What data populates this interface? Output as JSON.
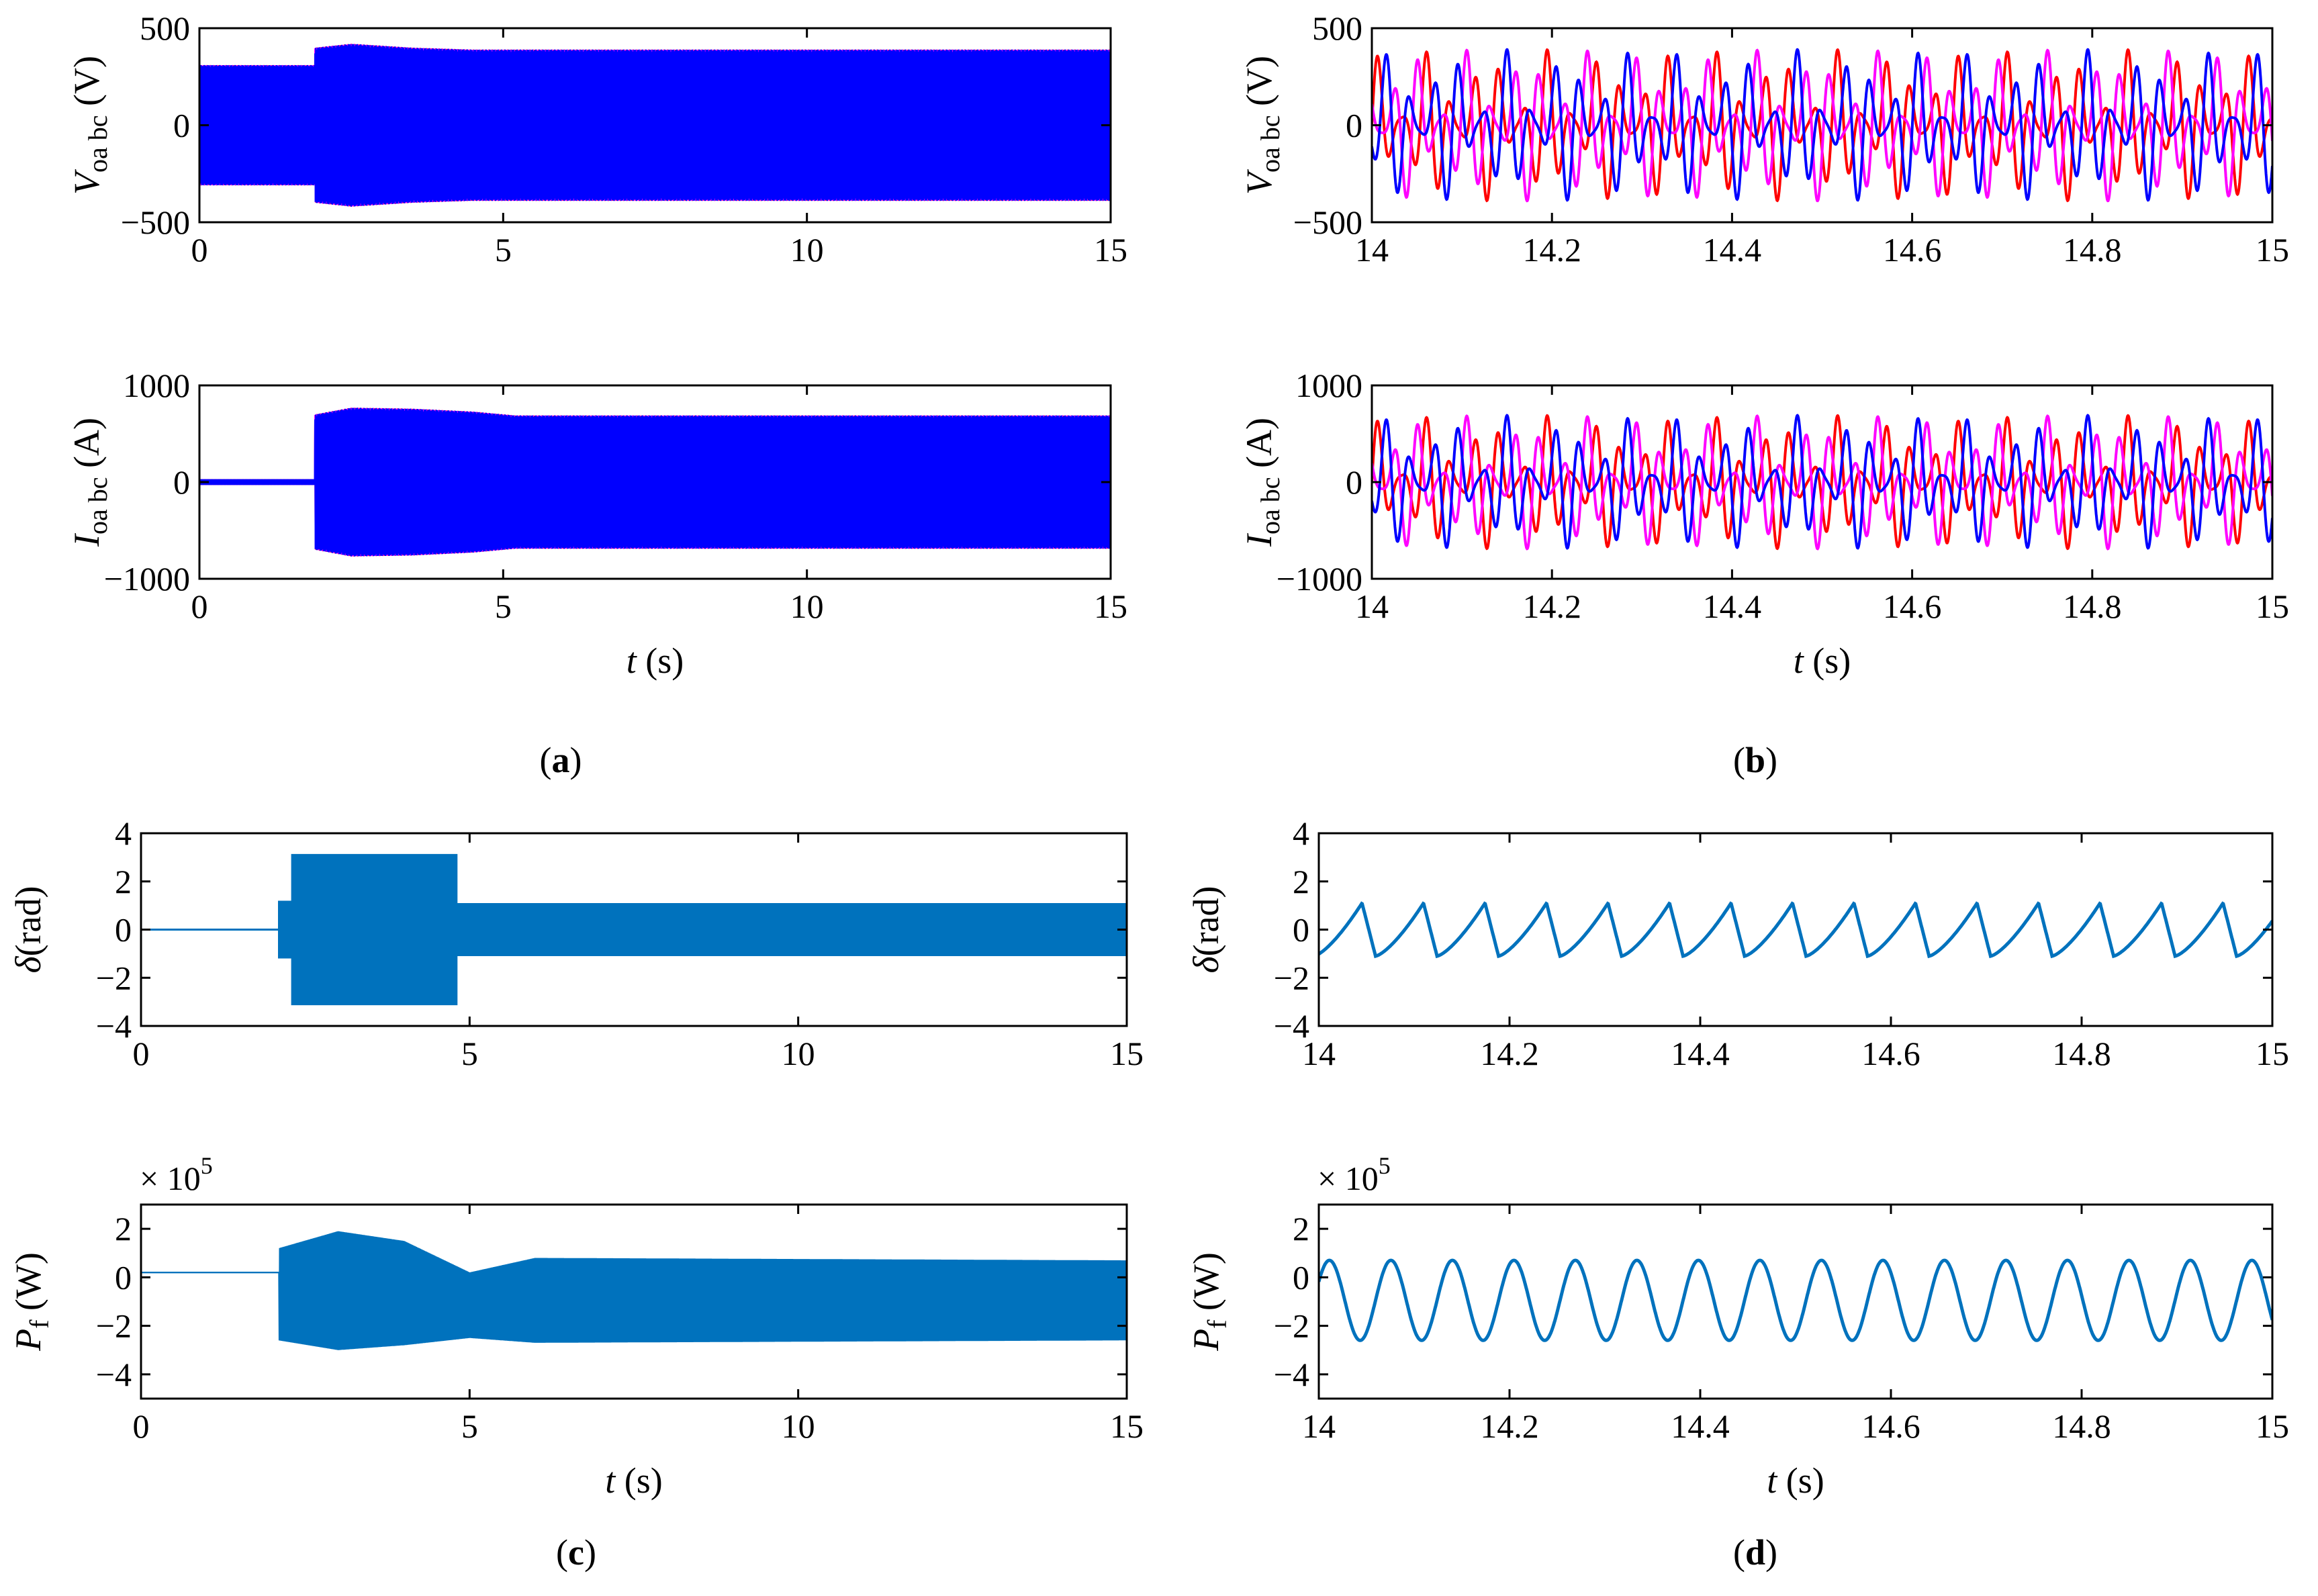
{
  "colors": {
    "phase_a": "#ff0000",
    "phase_b": "#ff00ff",
    "phase_c": "#0000ff",
    "single": "#0072bd"
  },
  "panels": {
    "a": {
      "label": "a"
    },
    "b": {
      "label": "b"
    },
    "c": {
      "label": "c"
    },
    "d": {
      "label": "d"
    }
  },
  "x_axis_label": {
    "var": "t",
    "unit": "(s)"
  },
  "chart_data": [
    {
      "panel": "a",
      "type": "line",
      "ylabel": {
        "sym": "V",
        "sub": "oa bc",
        "unit": "(V)"
      },
      "xlim": [
        0,
        15
      ],
      "ylim": [
        -500,
        500
      ],
      "xticks": [
        "0",
        "5",
        "10",
        "15"
      ],
      "yticks": [
        "500",
        "0",
        "−500"
      ],
      "series": [
        {
          "color": "phase_a",
          "phase_deg": 0
        },
        {
          "color": "phase_b",
          "phase_deg": 120
        },
        {
          "color": "phase_c",
          "phase_deg": 240
        }
      ],
      "envelope": [
        [
          0,
          310
        ],
        [
          1.9,
          310
        ],
        [
          1.9,
          400
        ],
        [
          2.5,
          420
        ],
        [
          3.5,
          400
        ],
        [
          4.5,
          390
        ],
        [
          5.2,
          390
        ],
        [
          15,
          390
        ]
      ]
    },
    {
      "panel": "a",
      "type": "line",
      "ylabel": {
        "sym": "I",
        "sub": "oa bc",
        "unit": "(A)"
      },
      "xlim": [
        0,
        15
      ],
      "ylim": [
        -1000,
        1000
      ],
      "xticks": [
        "0",
        "5",
        "10",
        "15"
      ],
      "yticks": [
        "1000",
        "0",
        "−1000"
      ],
      "series": [
        {
          "color": "phase_a",
          "phase_deg": 0
        },
        {
          "color": "phase_b",
          "phase_deg": 120
        },
        {
          "color": "phase_c",
          "phase_deg": 240
        }
      ],
      "envelope": [
        [
          0,
          30
        ],
        [
          1.9,
          30
        ],
        [
          1.9,
          700
        ],
        [
          2.5,
          770
        ],
        [
          3.5,
          760
        ],
        [
          4.5,
          730
        ],
        [
          5.2,
          690
        ],
        [
          15,
          690
        ]
      ]
    },
    {
      "panel": "b",
      "type": "line",
      "ylabel": {
        "sym": "V",
        "sub": "oa bc",
        "unit": "(V)"
      },
      "xlim": [
        14,
        15
      ],
      "ylim": [
        -500,
        500
      ],
      "xticks": [
        "14",
        "14.2",
        "14.4",
        "14.6",
        "14.8",
        "15"
      ],
      "yticks": [
        "500",
        "0",
        "−500"
      ],
      "carrier_hz": 50,
      "beat_period_s": 0.0645,
      "amplitude": 390,
      "series": [
        {
          "color": "phase_a",
          "phase_deg": 0
        },
        {
          "color": "phase_b",
          "phase_deg": 120
        },
        {
          "color": "phase_c",
          "phase_deg": 240
        }
      ]
    },
    {
      "panel": "b",
      "type": "line",
      "ylabel": {
        "sym": "I",
        "sub": "oa bc",
        "unit": "(A)"
      },
      "xlim": [
        14,
        15
      ],
      "ylim": [
        -1000,
        1000
      ],
      "xticks": [
        "14",
        "14.2",
        "14.4",
        "14.6",
        "14.8",
        "15"
      ],
      "yticks": [
        "1000",
        "0",
        "−1000"
      ],
      "carrier_hz": 50,
      "beat_period_s": 0.0645,
      "amplitude": 690,
      "series": [
        {
          "color": "phase_a",
          "phase_deg": 0
        },
        {
          "color": "phase_b",
          "phase_deg": 120
        },
        {
          "color": "phase_c",
          "phase_deg": 240
        }
      ]
    },
    {
      "panel": "c",
      "type": "line",
      "ylabel": {
        "sym": "δ",
        "unit": "(rad)"
      },
      "xlim": [
        0,
        15
      ],
      "ylim": [
        -4,
        4
      ],
      "xticks": [
        "0",
        "5",
        "10",
        "15"
      ],
      "yticks": [
        "4",
        "2",
        "0",
        "−2",
        "−4"
      ],
      "series": [
        {
          "color": "single"
        }
      ],
      "segments": [
        {
          "x": [
            0,
            2.1
          ],
          "level": 0
        },
        {
          "x": [
            2.1,
            2.3
          ],
          "lo": -1.2,
          "hi": 1.2
        },
        {
          "x": [
            2.3,
            4.8
          ],
          "lo": -3.14,
          "hi": 3.14
        },
        {
          "x": [
            4.8,
            15
          ],
          "lo": -1.1,
          "hi": 1.1
        }
      ]
    },
    {
      "panel": "c",
      "type": "line",
      "ylabel": {
        "sym": "P",
        "sub": "f",
        "unit": "(W)"
      },
      "multiplier": "× 10",
      "multiplier_exp": "5",
      "xlim": [
        0,
        15
      ],
      "ylim": [
        -5,
        3
      ],
      "xticks": [
        "0",
        "5",
        "10",
        "15"
      ],
      "yticks": [
        "2",
        "0",
        "−2",
        "−4"
      ],
      "series": [
        {
          "color": "single"
        }
      ],
      "envelope_hi": [
        [
          0,
          0.2
        ],
        [
          2.1,
          0.2
        ],
        [
          2.1,
          1.2
        ],
        [
          3.0,
          1.9
        ],
        [
          4.0,
          1.5
        ],
        [
          5.0,
          0.2
        ],
        [
          6.0,
          0.8
        ],
        [
          15,
          0.7
        ]
      ],
      "envelope_lo": [
        [
          0,
          0.2
        ],
        [
          2.1,
          0.2
        ],
        [
          2.1,
          -2.6
        ],
        [
          3.0,
          -3.0
        ],
        [
          4.0,
          -2.8
        ],
        [
          5.0,
          -2.5
        ],
        [
          6.0,
          -2.7
        ],
        [
          15,
          -2.6
        ]
      ]
    },
    {
      "panel": "d",
      "type": "line",
      "ylabel": {
        "sym": "δ",
        "unit": "(rad)"
      },
      "xlim": [
        14,
        15
      ],
      "ylim": [
        -4,
        4
      ],
      "xticks": [
        "14",
        "14.2",
        "14.4",
        "14.6",
        "14.8",
        "15"
      ],
      "yticks": [
        "4",
        "2",
        "0",
        "−2",
        "−4"
      ],
      "series": [
        {
          "color": "single"
        }
      ],
      "period_s": 0.0645,
      "peak": 1.1,
      "trough": -1.1
    },
    {
      "panel": "d",
      "type": "line",
      "ylabel": {
        "sym": "P",
        "sub": "f",
        "unit": "(W)"
      },
      "multiplier": "× 10",
      "multiplier_exp": "5",
      "xlim": [
        14,
        15
      ],
      "ylim": [
        -5,
        3
      ],
      "xticks": [
        "14",
        "14.2",
        "14.4",
        "14.6",
        "14.8",
        "15"
      ],
      "yticks": [
        "2",
        "0",
        "−2",
        "−4"
      ],
      "series": [
        {
          "color": "single"
        }
      ],
      "period_s": 0.0645,
      "peak": 0.7,
      "trough": -2.6
    }
  ]
}
